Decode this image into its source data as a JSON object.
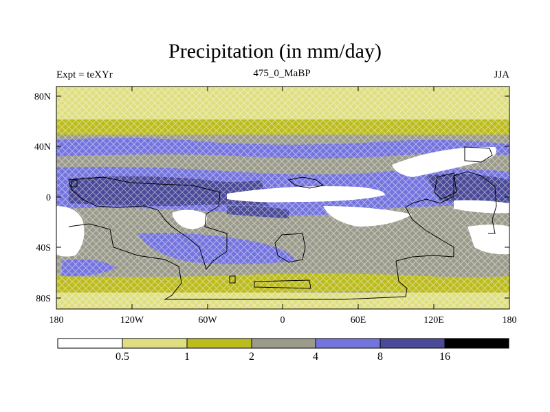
{
  "figure": {
    "title": "Precipitation (in mm/day)",
    "left_label": "Expt = teXYr",
    "center_label": "475_0_MaBP",
    "right_label": "JJA"
  },
  "axes": {
    "x_ticks": [
      "180",
      "120W",
      "60W",
      "0",
      "60E",
      "120E",
      "180"
    ],
    "y_ticks": [
      "80N",
      "40N",
      "0",
      "40S",
      "80S"
    ]
  },
  "colorbar": {
    "labels": [
      "0.5",
      "1",
      "2",
      "4",
      "8",
      "16"
    ],
    "colors": [
      "#ffffff",
      "#dfdf82",
      "#bcbc1f",
      "#9b9b8c",
      "#7474de",
      "#4a4a98",
      "#000000"
    ]
  }
}
